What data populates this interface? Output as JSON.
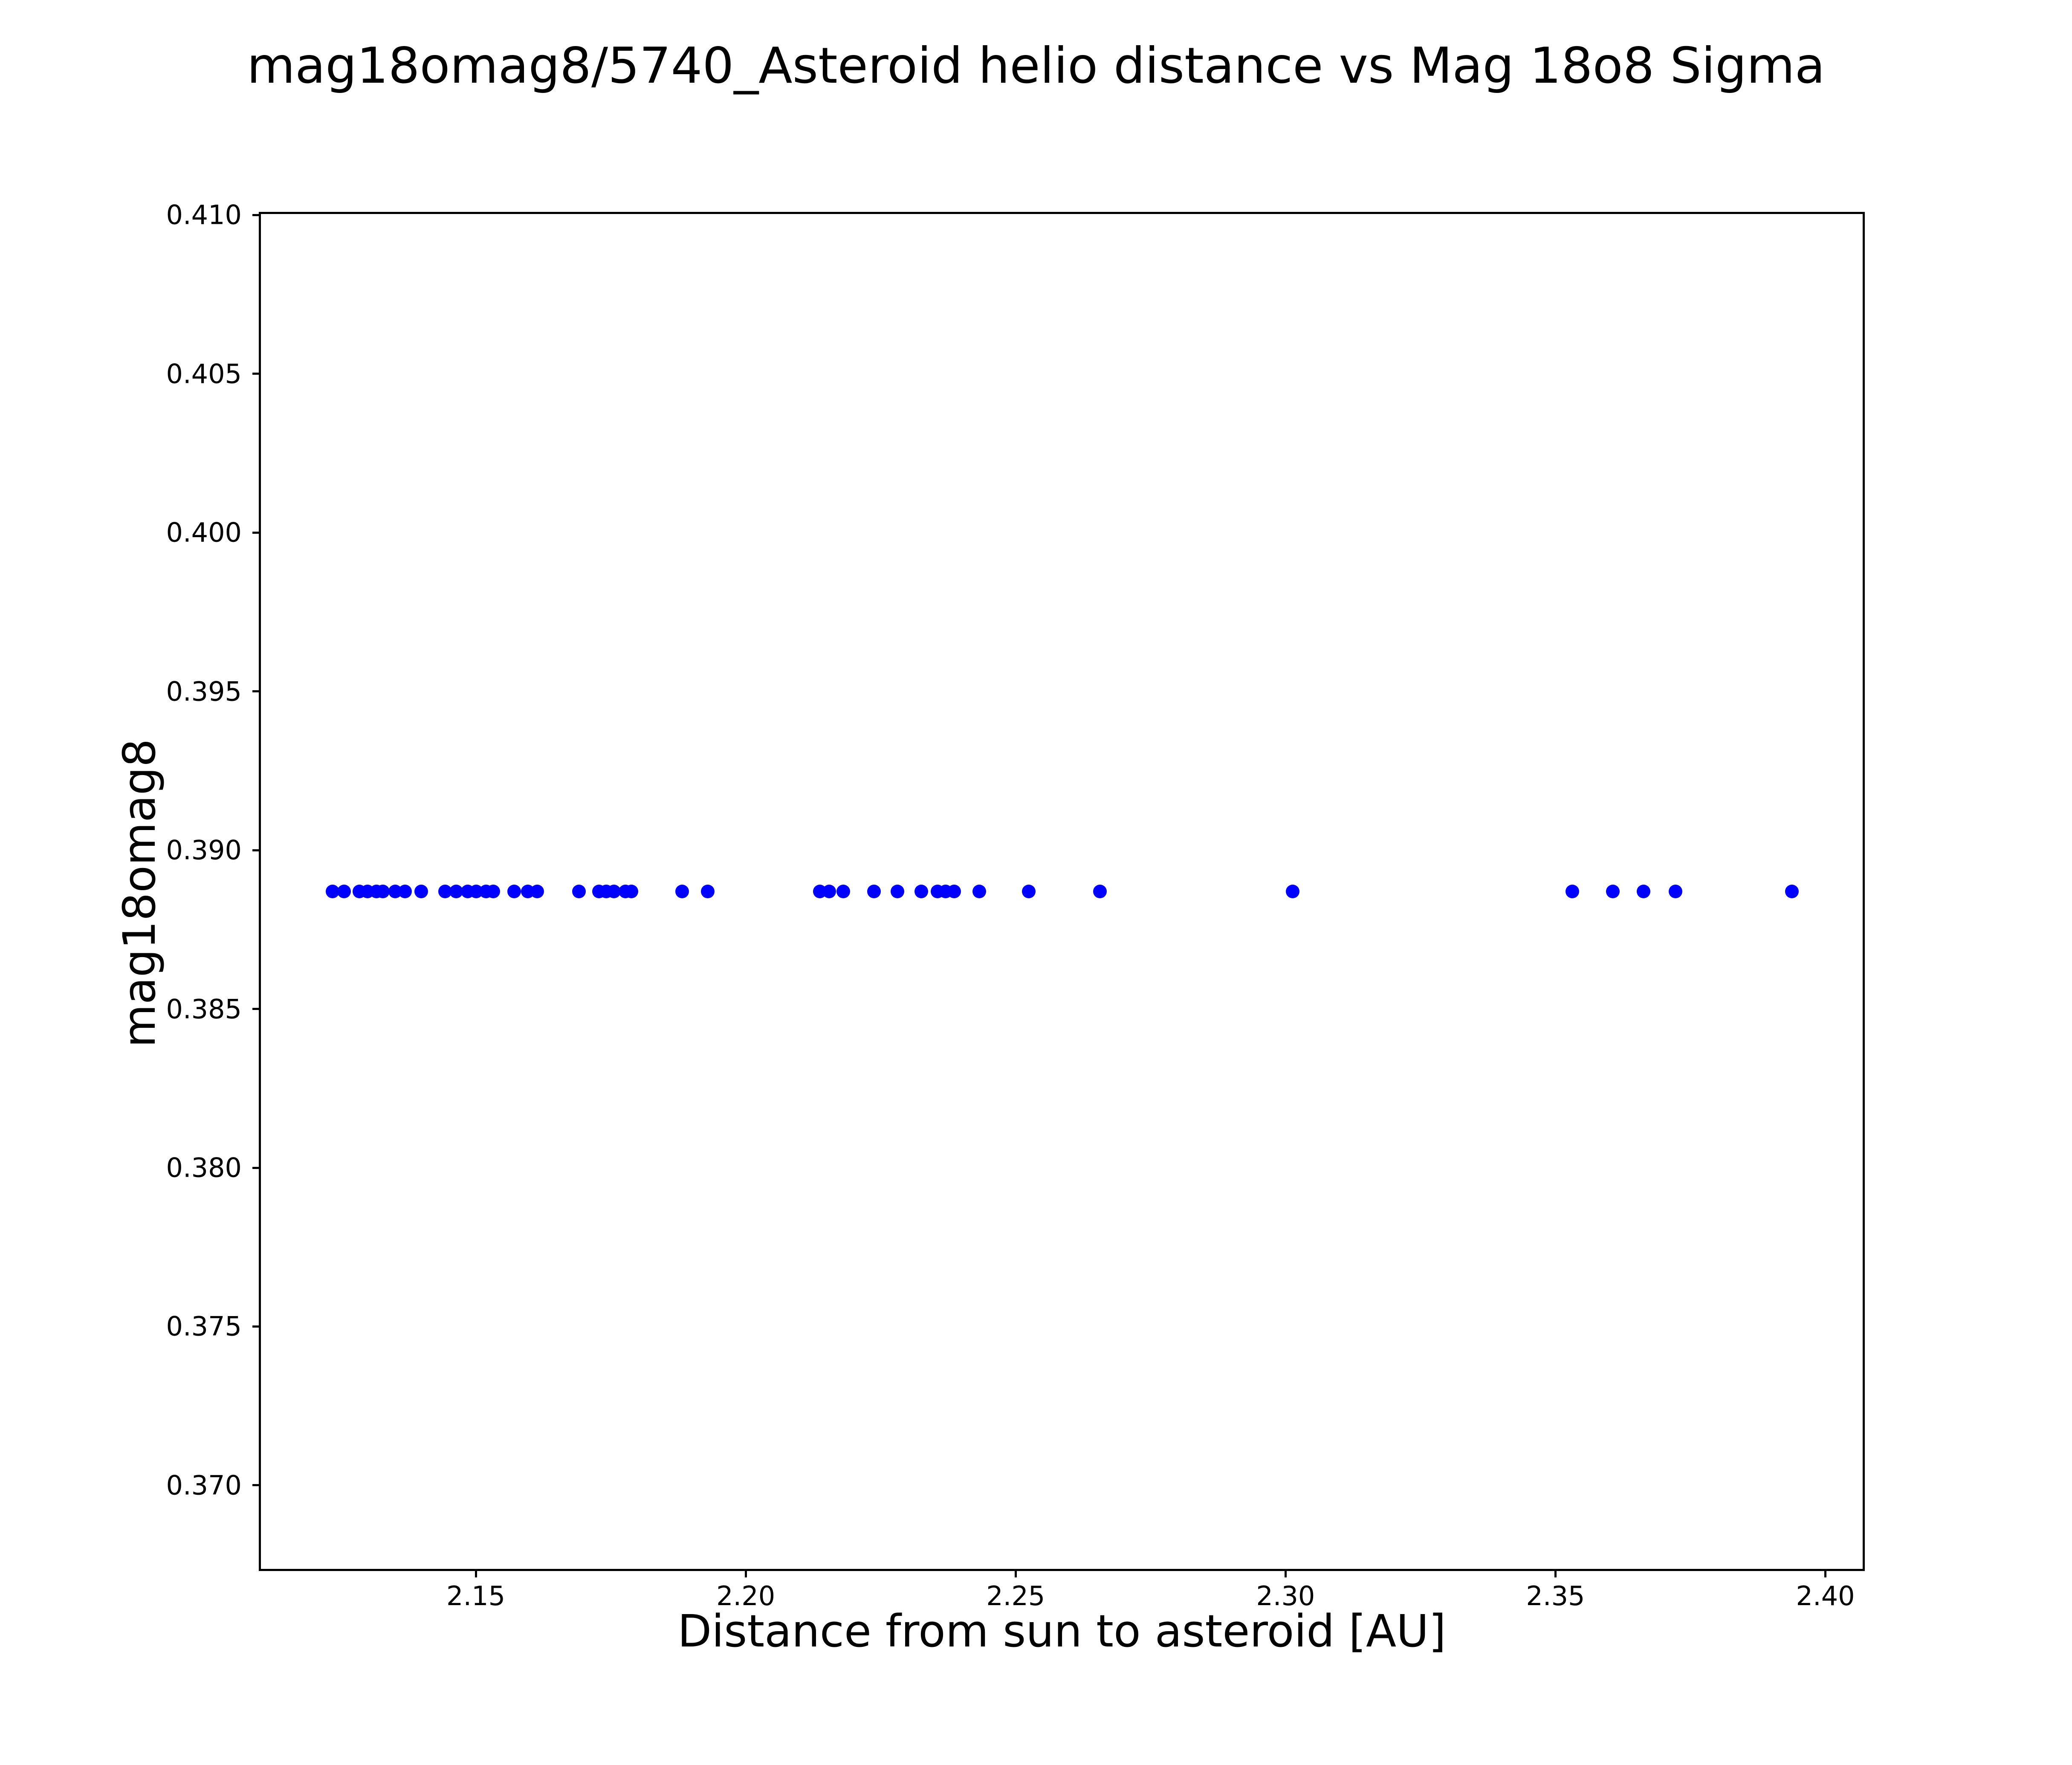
{
  "chart_data": {
    "type": "scatter",
    "title": "mag18omag8/5740_Asteroid helio distance vs Mag 18o8 Sigma",
    "xlabel": "Distance from sun to asteroid [AU]",
    "ylabel": "mag18omag8",
    "x": [
      2.1235,
      2.1256,
      2.1284,
      2.1299,
      2.1316,
      2.1328,
      2.1351,
      2.1369,
      2.1399,
      2.1443,
      2.1464,
      2.1485,
      2.1501,
      2.1519,
      2.1532,
      2.1571,
      2.1596,
      2.1614,
      2.1691,
      2.1728,
      2.1742,
      2.1756,
      2.1777,
      2.1788,
      2.1882,
      2.193,
      2.2137,
      2.2155,
      2.2181,
      2.2238,
      2.2281,
      2.2325,
      2.2355,
      2.237,
      2.2386,
      2.2433,
      2.2524,
      2.2656,
      2.3013,
      2.3531,
      2.3606,
      2.3663,
      2.3722,
      2.3938
    ],
    "y_value": 0.3887,
    "xlim": [
      2.1098,
      2.4073
    ],
    "ylim": [
      0.3673,
      0.4101
    ],
    "xticks": [
      2.15,
      2.2,
      2.25,
      2.3,
      2.35,
      2.4
    ],
    "xtick_labels": [
      "2.15",
      "2.20",
      "2.25",
      "2.30",
      "2.35",
      "2.40"
    ],
    "yticks": [
      0.37,
      0.375,
      0.38,
      0.385,
      0.39,
      0.395,
      0.4,
      0.405,
      0.41
    ],
    "ytick_labels": [
      "0.370",
      "0.375",
      "0.380",
      "0.385",
      "0.390",
      "0.395",
      "0.400",
      "0.405",
      "0.410"
    ],
    "marker_color": "#0000ff",
    "axis_color": "#000000",
    "background_color": "#ffffff",
    "grid": false,
    "legend": false
  }
}
